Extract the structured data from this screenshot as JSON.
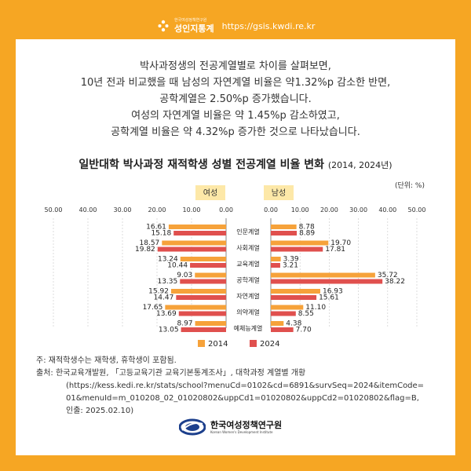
{
  "header": {
    "brand_small": "한국여성정책연구원",
    "brand_name": "성인지통계",
    "url": "https://gsis.kwdi.re.kr"
  },
  "intro": {
    "lines": [
      "박사과정생의 전공계열별로 차이를 살펴보면,",
      "10년 전과 비교했을 때 남성의 자연계열 비율은 약1.32%p 감소한 반면,",
      "공학계열은 2.50%p 증가했습니다.",
      "여성의 자연계열 비율은 약 1.45%p 감소하였고,",
      "공학계열 비율은 약 4.32%p 증가한 것으로 나타났습니다."
    ]
  },
  "chart_data": {
    "type": "bar",
    "title": "일반대학 박사과정 재적학생 성별 전공계열 비율 변화",
    "title_suffix": "(2014, 2024년)",
    "unit": "(단위: %)",
    "categories": [
      "인문계열",
      "사회계열",
      "교육계열",
      "공학계열",
      "자연계열",
      "의약계열",
      "예체능계열"
    ],
    "panels": [
      {
        "label": "여성",
        "direction": "left",
        "ticks": [
          "50.00",
          "40.00",
          "30.00",
          "20.00",
          "10.00",
          "0.00"
        ],
        "xlim": [
          0,
          50
        ],
        "series": [
          {
            "name": "2014",
            "values": [
              "16.61",
              "18.57",
              "13.24",
              "9.03",
              "15.92",
              "17.65",
              "8.97"
            ]
          },
          {
            "name": "2024",
            "values": [
              "15.18",
              "19.82",
              "10.44",
              "13.35",
              "14.47",
              "13.69",
              "13.05"
            ]
          }
        ]
      },
      {
        "label": "남성",
        "direction": "right",
        "ticks": [
          "0.00",
          "10.00",
          "20.00",
          "30.00",
          "40.00",
          "50.00"
        ],
        "xlim": [
          0,
          50
        ],
        "series": [
          {
            "name": "2014",
            "values": [
              "8.78",
              "19.70",
              "3.39",
              "35.72",
              "16.93",
              "11.10",
              "4.38"
            ]
          },
          {
            "name": "2024",
            "values": [
              "8.89",
              "17.81",
              "3.21",
              "38.22",
              "15.61",
              "8.55",
              "7.70"
            ]
          }
        ]
      }
    ],
    "legend": [
      {
        "name": "2014",
        "color": "#f6a23a"
      },
      {
        "name": "2024",
        "color": "#e0504e"
      }
    ],
    "legend_position": "bottom",
    "grid": true,
    "colors": {
      "2014": "#f6a23a",
      "2024": "#e0504e",
      "panel_label_bg": "#fde8a8"
    }
  },
  "notes": {
    "note": "주: 재적학생수는 재학생, 휴학생이 포함됨.",
    "source_lines": [
      "출처: 한국교육개발원, 「고등교육기관 교육기본통계조사」, 대학과정 계열별 개황",
      "(https://kess.kedi.re.kr/stats/school?menuCd=0102&cd=6891&survSeq=2024&itemCode=",
      "01&menuId=m_010208_02_01020802&uppCd1=01020802&uppCd2=01020802&flag=B,",
      "인출: 2025.02.10)"
    ]
  },
  "footer": {
    "name_kr": "한국여성정책연구원",
    "name_en": "Korean Women's Development Institute"
  }
}
